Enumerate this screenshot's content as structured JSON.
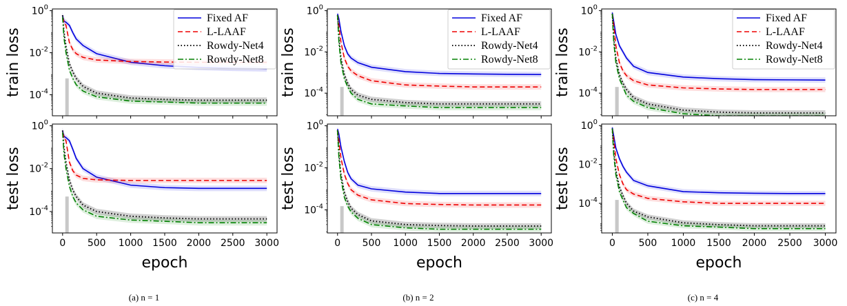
{
  "figure": {
    "xlabel": "epoch",
    "captions": [
      "(a) n = 1",
      "(b) n = 2",
      "(c) n = 4"
    ],
    "legend": [
      {
        "label": "Fixed AF",
        "color": "#0000dd",
        "style": "solid"
      },
      {
        "label": "L-LAAF",
        "color": "#ee0000",
        "style": "dashed"
      },
      {
        "label": "Rowdy-Net4",
        "color": "#000000",
        "style": "dotted"
      },
      {
        "label": "Rowdy-Net8",
        "color": "#008000",
        "style": "dashdot"
      }
    ],
    "xticks": [
      "0",
      "500",
      "1000",
      "1500",
      "2000",
      "2500",
      "3000"
    ],
    "yticks": [
      "10",
      "10",
      "10"
    ],
    "ytick_exponents": [
      "0",
      "-2",
      "-4"
    ],
    "colors": {
      "fixed": "#0000dd",
      "laaf": "#ee0000",
      "rowdy4": "#000000",
      "rowdy8": "#008000",
      "band": "#c8c8c8"
    }
  },
  "chart_data": [
    {
      "type": "line",
      "panel": "a",
      "ylabel": "train loss",
      "yscale": "log",
      "xlim": [
        -150,
        3150
      ],
      "ylim": [
        1e-05,
        1.2
      ],
      "x": [
        0,
        20,
        50,
        100,
        150,
        200,
        300,
        500,
        1000,
        1500,
        2000,
        2500,
        3000
      ],
      "series": [
        {
          "name": "Fixed AF",
          "values": [
            0.6,
            0.32,
            0.28,
            0.2,
            0.09,
            0.045,
            0.022,
            0.009,
            0.0035,
            0.0024,
            0.002,
            0.0018,
            0.0017
          ]
        },
        {
          "name": "L-LAAF",
          "values": [
            0.5,
            0.3,
            0.2,
            0.03,
            0.014,
            0.009,
            0.006,
            0.0045,
            0.0038,
            0.0036,
            0.0035,
            0.0035,
            0.0035
          ]
        },
        {
          "name": "Rowdy-Net4",
          "values": [
            0.6,
            0.1,
            0.02,
            0.003,
            0.0012,
            0.0006,
            0.00025,
            0.00012,
            7e-05,
            6e-05,
            5.5e-05,
            5.5e-05,
            5.5e-05
          ]
        },
        {
          "name": "Rowdy-Net8",
          "values": [
            0.5,
            0.05,
            0.01,
            0.0015,
            0.0006,
            0.0003,
            0.00015,
            8e-05,
            5e-05,
            4.5e-05,
            4e-05,
            4e-05,
            4e-05
          ]
        }
      ]
    },
    {
      "type": "line",
      "panel": "a",
      "ylabel": "test loss",
      "yscale": "log",
      "xlim": [
        -150,
        3150
      ],
      "ylim": [
        1e-05,
        1.2
      ],
      "x": [
        0,
        20,
        50,
        100,
        150,
        200,
        300,
        500,
        1000,
        1500,
        2000,
        2500,
        3000
      ],
      "series": [
        {
          "name": "Fixed AF",
          "values": [
            0.6,
            0.32,
            0.28,
            0.2,
            0.08,
            0.03,
            0.01,
            0.004,
            0.0017,
            0.0013,
            0.0012,
            0.0012,
            0.0012
          ]
        },
        {
          "name": "L-LAAF",
          "values": [
            0.5,
            0.3,
            0.2,
            0.02,
            0.008,
            0.005,
            0.0035,
            0.003,
            0.0028,
            0.0028,
            0.0028,
            0.0028,
            0.0028
          ]
        },
        {
          "name": "Rowdy-Net4",
          "values": [
            0.6,
            0.1,
            0.02,
            0.003,
            0.001,
            0.0005,
            0.0002,
            0.0001,
            6e-05,
            5e-05,
            4.5e-05,
            4.5e-05,
            4.5e-05
          ]
        },
        {
          "name": "Rowdy-Net8",
          "values": [
            0.5,
            0.05,
            0.01,
            0.0015,
            0.0005,
            0.00025,
            0.00012,
            6e-05,
            4e-05,
            3.5e-05,
            3e-05,
            3e-05,
            3e-05
          ]
        }
      ]
    },
    {
      "type": "line",
      "panel": "b",
      "ylabel": "train loss",
      "yscale": "log",
      "xlim": [
        -150,
        3150
      ],
      "ylim": [
        8e-06,
        1.2
      ],
      "x": [
        0,
        20,
        50,
        100,
        150,
        200,
        300,
        500,
        1000,
        1500,
        2000,
        2500,
        3000
      ],
      "series": [
        {
          "name": "Fixed AF",
          "values": [
            0.7,
            0.4,
            0.1,
            0.02,
            0.008,
            0.005,
            0.003,
            0.0018,
            0.0011,
            0.0009,
            0.00085,
            0.00082,
            0.0008
          ]
        },
        {
          "name": "L-LAAF",
          "values": [
            0.6,
            0.2,
            0.03,
            0.005,
            0.002,
            0.0012,
            0.0007,
            0.0004,
            0.00025,
            0.00022,
            0.0002,
            0.0002,
            0.0002
          ]
        },
        {
          "name": "Rowdy-Net4",
          "values": [
            0.6,
            0.05,
            0.005,
            0.0008,
            0.0003,
            0.00015,
            8e-05,
            5e-05,
            3.5e-05,
            3e-05,
            3e-05,
            3e-05,
            3e-05
          ]
        },
        {
          "name": "Rowdy-Net8",
          "values": [
            0.6,
            0.03,
            0.003,
            0.0005,
            0.0002,
            0.0001,
            5e-05,
            3e-05,
            2.4e-05,
            2e-05,
            2e-05,
            2e-05,
            2e-05
          ]
        }
      ]
    },
    {
      "type": "line",
      "panel": "b",
      "ylabel": "test loss",
      "yscale": "log",
      "xlim": [
        -150,
        3150
      ],
      "ylim": [
        8e-06,
        1.2
      ],
      "x": [
        0,
        20,
        50,
        100,
        150,
        200,
        300,
        500,
        1000,
        1500,
        2000,
        2500,
        3000
      ],
      "series": [
        {
          "name": "Fixed AF",
          "values": [
            0.7,
            0.4,
            0.1,
            0.02,
            0.006,
            0.003,
            0.0015,
            0.001,
            0.0007,
            0.0006,
            0.0006,
            0.0006,
            0.0006
          ]
        },
        {
          "name": "L-LAAF",
          "values": [
            0.6,
            0.2,
            0.03,
            0.005,
            0.0018,
            0.0009,
            0.0005,
            0.0003,
            0.0002,
            0.00018,
            0.00017,
            0.00017,
            0.00017
          ]
        },
        {
          "name": "Rowdy-Net4",
          "values": [
            0.6,
            0.05,
            0.005,
            0.0007,
            0.00025,
            0.00012,
            6e-05,
            3e-05,
            2e-05,
            1.8e-05,
            1.7e-05,
            1.7e-05,
            1.7e-05
          ]
        },
        {
          "name": "Rowdy-Net8",
          "values": [
            0.6,
            0.03,
            0.003,
            0.0004,
            0.00015,
            8e-05,
            4e-05,
            2e-05,
            1.4e-05,
            1.2e-05,
            1.2e-05,
            1.2e-05,
            1.2e-05
          ]
        }
      ]
    },
    {
      "type": "line",
      "panel": "c",
      "ylabel": "train loss",
      "yscale": "log",
      "xlim": [
        -150,
        3150
      ],
      "ylim": [
        8e-06,
        1.2
      ],
      "x": [
        0,
        20,
        50,
        100,
        150,
        200,
        300,
        500,
        1000,
        1500,
        2000,
        2500,
        3000
      ],
      "series": [
        {
          "name": "Fixed AF",
          "values": [
            0.8,
            0.3,
            0.07,
            0.02,
            0.01,
            0.005,
            0.002,
            0.001,
            0.0006,
            0.0005,
            0.00045,
            0.00044,
            0.00043
          ]
        },
        {
          "name": "L-LAAF",
          "values": [
            0.7,
            0.2,
            0.02,
            0.003,
            0.0012,
            0.0007,
            0.0004,
            0.00025,
            0.00018,
            0.00016,
            0.00015,
            0.00015,
            0.00015
          ]
        },
        {
          "name": "Rowdy-Net4",
          "values": [
            0.7,
            0.05,
            0.005,
            0.0008,
            0.0003,
            0.00015,
            6e-05,
            3e-05,
            1.5e-05,
            1.2e-05,
            1.1e-05,
            1.1e-05,
            1.1e-05
          ]
        },
        {
          "name": "Rowdy-Net8",
          "values": [
            0.7,
            0.03,
            0.003,
            0.0005,
            0.0002,
            8e-05,
            4e-05,
            2e-05,
            1e-05,
            8e-06,
            8e-06,
            8e-06,
            8e-06
          ]
        }
      ]
    },
    {
      "type": "line",
      "panel": "c",
      "ylabel": "test loss",
      "yscale": "log",
      "xlim": [
        -150,
        3150
      ],
      "ylim": [
        3e-06,
        1.2
      ],
      "x": [
        0,
        20,
        50,
        100,
        150,
        200,
        300,
        500,
        1000,
        1500,
        2000,
        2500,
        3000
      ],
      "series": [
        {
          "name": "Fixed AF",
          "values": [
            0.8,
            0.3,
            0.07,
            0.02,
            0.008,
            0.004,
            0.0015,
            0.0008,
            0.0004,
            0.00035,
            0.00033,
            0.00032,
            0.00032
          ]
        },
        {
          "name": "L-LAAF",
          "values": [
            0.7,
            0.2,
            0.02,
            0.003,
            0.001,
            0.0005,
            0.0003,
            0.00018,
            0.00012,
            0.0001,
            0.0001,
            0.0001,
            0.0001
          ]
        },
        {
          "name": "Rowdy-Net4",
          "values": [
            0.7,
            0.05,
            0.005,
            0.0007,
            0.00025,
            0.0001,
            4e-05,
            2e-05,
            1e-05,
            8e-06,
            7e-06,
            7e-06,
            7e-06
          ]
        },
        {
          "name": "Rowdy-Net8",
          "values": [
            0.7,
            0.03,
            0.003,
            0.0004,
            0.00015,
            6e-05,
            3e-05,
            1.2e-05,
            7e-06,
            6e-06,
            5e-06,
            5e-06,
            5e-06
          ]
        }
      ]
    }
  ]
}
